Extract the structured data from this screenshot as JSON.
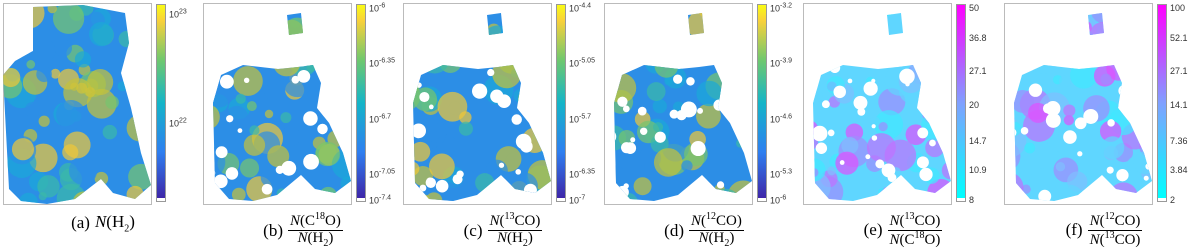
{
  "panels": [
    {
      "caption": {
        "label": "(a)",
        "text": [
          {
            "text": "N",
            "style": "italic"
          },
          {
            "text": "(H"
          },
          {
            "text": "2",
            "style": "sub"
          },
          {
            "text": ")"
          }
        ]
      },
      "colormap": "parula",
      "colorbar_ticks": [
        {
          "base": "10",
          "exp": "23"
        },
        {
          "base": "10",
          "exp": "22"
        }
      ]
    },
    {
      "caption": {
        "label": "(b)",
        "numerator": [
          {
            "text": "N",
            "style": "italic"
          },
          {
            "text": "(C"
          },
          {
            "text": "18",
            "style": "sup"
          },
          {
            "text": "O)"
          }
        ],
        "denominator": [
          {
            "text": "N",
            "style": "italic"
          },
          {
            "text": "(H"
          },
          {
            "text": "2",
            "style": "sub"
          },
          {
            "text": ")"
          }
        ]
      },
      "colormap": "parula",
      "colorbar_ticks": [
        {
          "base": "10",
          "exp": "-6"
        },
        {
          "base": "10",
          "exp": "-6.35"
        },
        {
          "base": "10",
          "exp": "-6.7"
        },
        {
          "base": "10",
          "exp": "-7.05"
        },
        {
          "base": "10",
          "exp": "-7.4"
        }
      ]
    },
    {
      "caption": {
        "label": "(c)",
        "numerator": [
          {
            "text": "N",
            "style": "italic"
          },
          {
            "text": "("
          },
          {
            "text": "13",
            "style": "sup"
          },
          {
            "text": "CO)"
          }
        ],
        "denominator": [
          {
            "text": "N",
            "style": "italic"
          },
          {
            "text": "(H"
          },
          {
            "text": "2",
            "style": "sub"
          },
          {
            "text": ")"
          }
        ]
      },
      "colormap": "parula",
      "colorbar_ticks": [
        {
          "base": "10",
          "exp": "-4.4"
        },
        {
          "base": "10",
          "exp": "-5.05"
        },
        {
          "base": "10",
          "exp": "-5.7"
        },
        {
          "base": "10",
          "exp": "-6.35"
        },
        {
          "base": "10",
          "exp": "-7"
        }
      ]
    },
    {
      "caption": {
        "label": "(d)",
        "numerator": [
          {
            "text": "N",
            "style": "italic"
          },
          {
            "text": "("
          },
          {
            "text": "12",
            "style": "sup"
          },
          {
            "text": "CO)"
          }
        ],
        "denominator": [
          {
            "text": "N",
            "style": "italic"
          },
          {
            "text": "(H"
          },
          {
            "text": "2",
            "style": "sub"
          },
          {
            "text": ")"
          }
        ]
      },
      "colormap": "parula",
      "colorbar_ticks": [
        {
          "base": "10",
          "exp": "-3.2"
        },
        {
          "base": "10",
          "exp": "-3.9"
        },
        {
          "base": "10",
          "exp": "-4.6"
        },
        {
          "base": "10",
          "exp": "-5.3"
        },
        {
          "base": "10",
          "exp": "-6"
        }
      ]
    },
    {
      "caption": {
        "label": "(e)",
        "numerator": [
          {
            "text": "N",
            "style": "italic"
          },
          {
            "text": "("
          },
          {
            "text": "13",
            "style": "sup"
          },
          {
            "text": "CO)"
          }
        ],
        "denominator": [
          {
            "text": "N",
            "style": "italic"
          },
          {
            "text": "(C"
          },
          {
            "text": "18",
            "style": "sup"
          },
          {
            "text": "O)"
          }
        ]
      },
      "colormap": "cool",
      "colorbar_ticks": [
        {
          "base": "50"
        },
        {
          "base": "36.8"
        },
        {
          "base": "27.1"
        },
        {
          "base": "20"
        },
        {
          "base": "14.7"
        },
        {
          "base": "10.9"
        },
        {
          "base": "8"
        }
      ]
    },
    {
      "caption": {
        "label": "(f)",
        "numerator": [
          {
            "text": "N",
            "style": "italic"
          },
          {
            "text": "("
          },
          {
            "text": "12",
            "style": "sup"
          },
          {
            "text": "CO)"
          }
        ],
        "denominator": [
          {
            "text": "N",
            "style": "italic"
          },
          {
            "text": "("
          },
          {
            "text": "13",
            "style": "sup"
          },
          {
            "text": "CO)"
          }
        ]
      },
      "colormap": "cool",
      "colorbar_ticks": [
        {
          "base": "100"
        },
        {
          "base": "52.1"
        },
        {
          "base": "27.1"
        },
        {
          "base": "14.1"
        },
        {
          "base": "7.36"
        },
        {
          "base": "3.84"
        },
        {
          "base": "2"
        }
      ]
    }
  ]
}
